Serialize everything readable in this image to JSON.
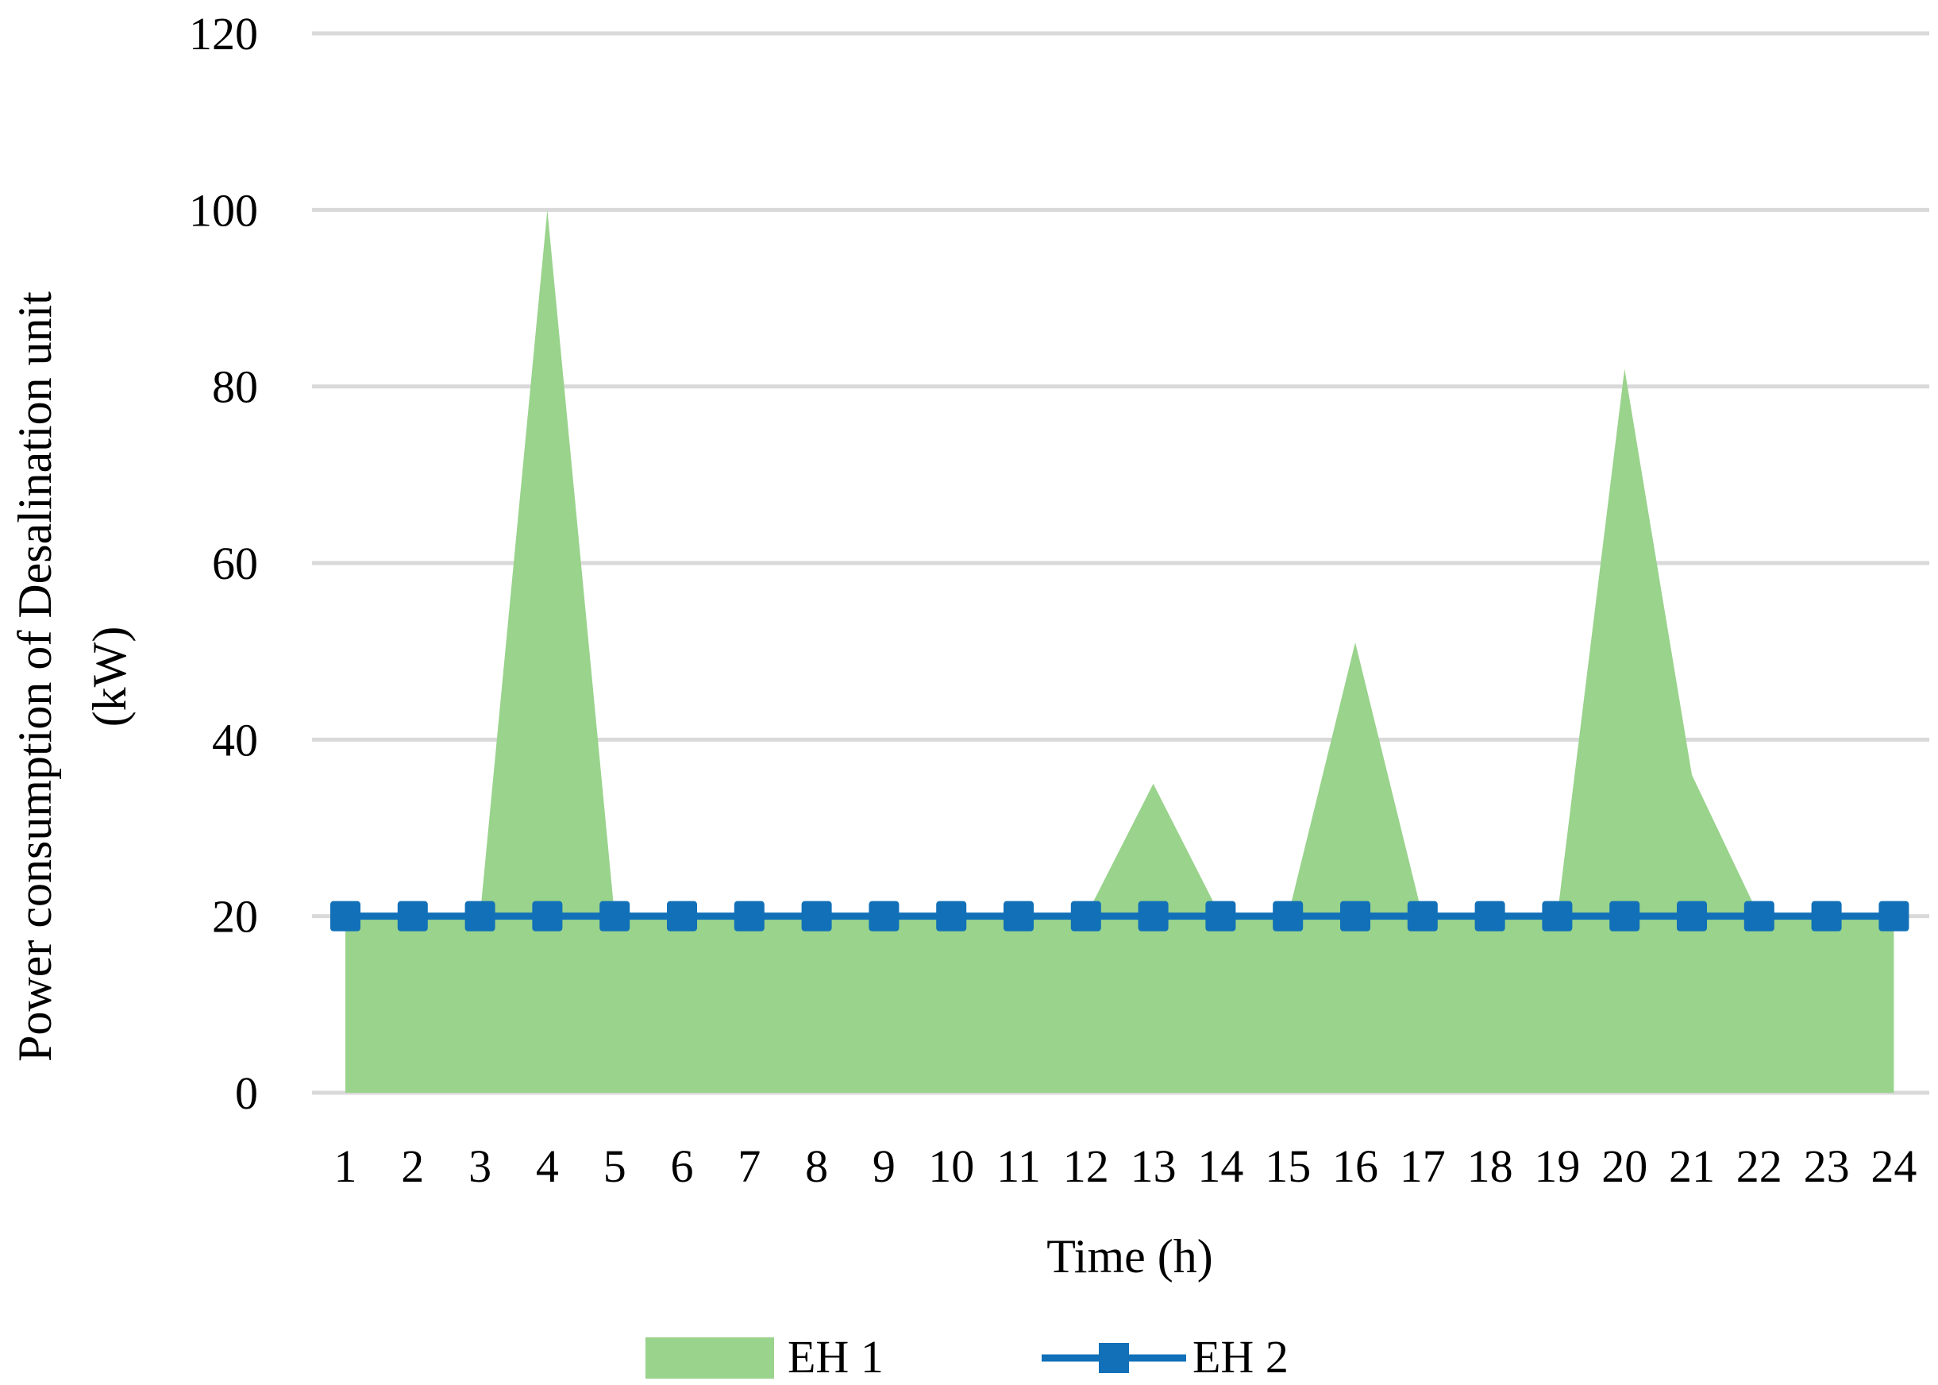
{
  "chart_data": {
    "type": "area",
    "title": "",
    "xlabel": "Time (h)",
    "ylabel_lines": [
      "Power consumption of Desalination unit",
      "(kW)"
    ],
    "categories": [
      "1",
      "2",
      "3",
      "4",
      "5",
      "6",
      "7",
      "8",
      "9",
      "10",
      "11",
      "12",
      "13",
      "14",
      "15",
      "16",
      "17",
      "18",
      "19",
      "20",
      "21",
      "22",
      "23",
      "24"
    ],
    "yticks": [
      "0",
      "20",
      "40",
      "60",
      "80",
      "100",
      "120"
    ],
    "ylim": [
      0,
      120
    ],
    "grid": true,
    "legend_position": "bottom",
    "series": [
      {
        "name": "EH 1",
        "kind": "area",
        "color": "#99d38c",
        "values": [
          20,
          20,
          20,
          100,
          20,
          20,
          20,
          20,
          20,
          20,
          20,
          20,
          35,
          20,
          20,
          51,
          20,
          20,
          20,
          82,
          36,
          20,
          20,
          20
        ]
      },
      {
        "name": "EH 2",
        "kind": "line-marker",
        "color": "#1170b8",
        "values": [
          20,
          20,
          20,
          20,
          20,
          20,
          20,
          20,
          20,
          20,
          20,
          20,
          20,
          20,
          20,
          20,
          20,
          20,
          20,
          20,
          20,
          20,
          20,
          20
        ]
      }
    ]
  }
}
